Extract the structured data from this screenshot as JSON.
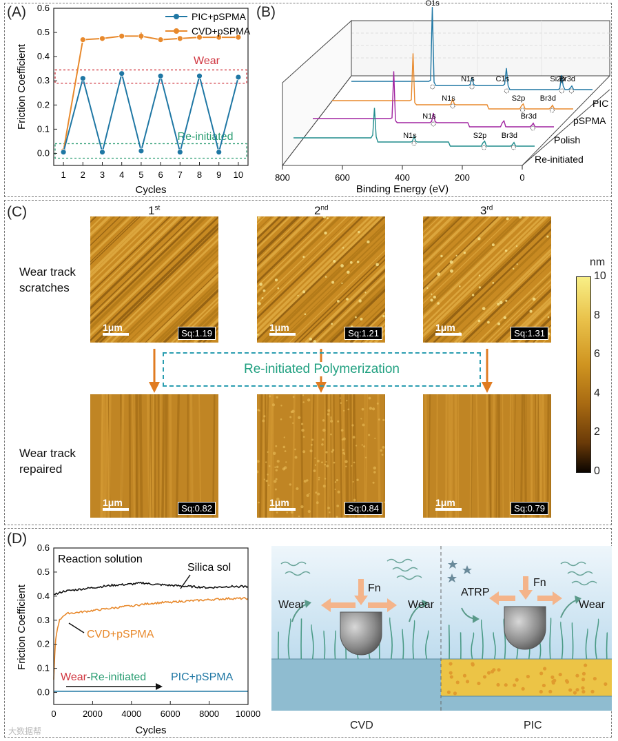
{
  "panels": {
    "a": "(A)",
    "b": "(B)",
    "c": "(C)",
    "d": "(D)"
  },
  "panel_c": {
    "col_headers": [
      {
        "num": "1",
        "sup": "st"
      },
      {
        "num": "2",
        "sup": "nd"
      },
      {
        "num": "3",
        "sup": "rd"
      }
    ],
    "row_top": [
      "Wear track",
      "scratches"
    ],
    "row_bottom": [
      "Wear track",
      "repaired"
    ],
    "scale_label": "1μm",
    "sq_top": [
      "Sq:1.19",
      "Sq:1.21",
      "Sq:1.31"
    ],
    "sq_bottom": [
      "Sq:0.82",
      "Sq:0.84",
      "Sq:0.79"
    ],
    "process_label": "Re-initiated  Polymerization",
    "colorbar": {
      "unit": "nm",
      "ticks": [
        "10",
        "8",
        "6",
        "4",
        "2",
        "0"
      ]
    }
  },
  "panel_d_schematic": {
    "labels": {
      "fn": "Fn",
      "wear": "Wear",
      "atrp": "ATRP",
      "cvd": "CVD",
      "pic": "PIC"
    }
  },
  "watermark": "大数据帮",
  "colors": {
    "blue": "#1f77a4",
    "orange": "#e8892c",
    "red": "#d0353f",
    "green": "#2a9d72",
    "purple": "#a023a0",
    "teal": "#1f8c8c"
  },
  "chart_data": [
    {
      "type": "line",
      "panel": "A",
      "xlabel": "Cycles",
      "ylabel": "Friction Coefficient",
      "xlim": [
        0.5,
        10.5
      ],
      "ylim": [
        -0.05,
        0.6
      ],
      "xticks": [
        1,
        2,
        3,
        4,
        5,
        6,
        7,
        8,
        9,
        10
      ],
      "yticks": [
        0.0,
        0.1,
        0.2,
        0.3,
        0.4,
        0.5,
        0.6
      ],
      "x": [
        1,
        2,
        3,
        4,
        5,
        6,
        7,
        8,
        9,
        10
      ],
      "series": [
        {
          "name": "PIC+pSPMA",
          "color": "#1f77a4",
          "values": [
            0.005,
            0.31,
            0.005,
            0.33,
            0.01,
            0.32,
            0.005,
            0.32,
            0.005,
            0.315
          ]
        },
        {
          "name": "CVD+pSPMA",
          "color": "#e8892c",
          "values": [
            0.01,
            0.47,
            0.475,
            0.485,
            0.485,
            0.47,
            0.475,
            0.48,
            0.48,
            0.48
          ]
        }
      ],
      "annotations": [
        {
          "text": "Wear",
          "color": "#d0353f",
          "band": [
            0.29,
            0.345
          ]
        },
        {
          "text": "Re-initiated",
          "color": "#2a9d72",
          "band": [
            -0.02,
            0.04
          ]
        }
      ]
    },
    {
      "type": "line",
      "panel": "B",
      "xlabel": "Binding Energy (eV)",
      "xlim": [
        800,
        0
      ],
      "xticks": [
        800,
        600,
        400,
        200,
        0
      ],
      "series": [
        {
          "name": "PIC",
          "color": "#1f77a4",
          "peaks": [
            "O1s",
            "N1s",
            "C1s",
            "Si2p",
            "Br3d"
          ]
        },
        {
          "name": "pSPMA",
          "color": "#e8892c",
          "peaks": [
            "N1s",
            "S2p",
            "Br3d"
          ]
        },
        {
          "name": "Polish",
          "color": "#a023a0",
          "peaks": [
            "N1s",
            "Br3d"
          ]
        },
        {
          "name": "Re-initiated",
          "color": "#1f8c8c",
          "peaks": [
            "N1s",
            "S2p",
            "Br3d"
          ]
        }
      ]
    },
    {
      "type": "line",
      "panel": "D",
      "xlabel": "Cycles",
      "ylabel": "Friction Coefficient",
      "xlim": [
        0,
        10000
      ],
      "ylim": [
        -0.05,
        0.6
      ],
      "xticks": [
        0,
        2000,
        4000,
        6000,
        8000,
        10000
      ],
      "yticks": [
        0.0,
        0.1,
        0.2,
        0.3,
        0.4,
        0.5,
        0.6
      ],
      "title": "Reaction solution",
      "series": [
        {
          "name": "Silica sol",
          "color": "#111111",
          "x": [
            0,
            200,
            500,
            1000,
            2000,
            3000,
            4000,
            4600,
            5000,
            6000,
            7000,
            8000,
            9000,
            10000
          ],
          "values": [
            0.41,
            0.41,
            0.42,
            0.425,
            0.435,
            0.445,
            0.45,
            0.455,
            0.45,
            0.445,
            0.44,
            0.435,
            0.44,
            0.44
          ]
        },
        {
          "name": "CVD+pSPMA",
          "color": "#e8892c",
          "x": [
            0,
            50,
            100,
            200,
            300,
            500,
            800,
            1000,
            2000,
            3000,
            4000,
            5000,
            6000,
            7000,
            8000,
            9000,
            10000
          ],
          "values": [
            0.05,
            0.15,
            0.22,
            0.27,
            0.3,
            0.32,
            0.33,
            0.33,
            0.34,
            0.35,
            0.36,
            0.37,
            0.375,
            0.38,
            0.385,
            0.39,
            0.39
          ]
        },
        {
          "name": "PIC+pSPMA",
          "color": "#1f77a4",
          "x": [
            0,
            10000
          ],
          "values": [
            0.005,
            0.005
          ]
        }
      ],
      "annotations": [
        {
          "text": "Wear",
          "color": "#d0353f"
        },
        {
          "text": "-",
          "color": "#111111"
        },
        {
          "text": "Re-initiated",
          "color": "#2a9d72"
        }
      ]
    }
  ]
}
